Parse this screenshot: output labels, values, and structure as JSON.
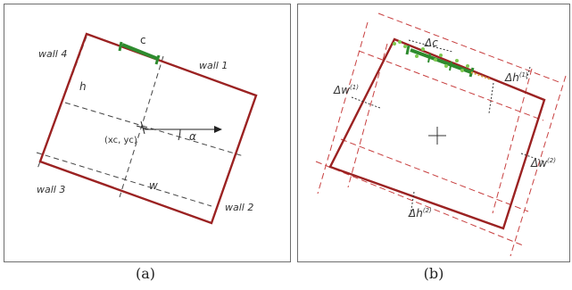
{
  "colors": {
    "wall": "#9b2222",
    "dashed_red": "#c84040",
    "dashed_black": "#444444",
    "door": "#2e8b2e",
    "door_points": "#7ec850"
  },
  "panel_a": {
    "caption": "(a)",
    "labels": {
      "wall1": "wall 1",
      "wall2": "wall 2",
      "wall3": "wall 3",
      "wall4": "wall 4",
      "c": "c",
      "h": "h",
      "w": "w",
      "center": "(xc, yc)",
      "alpha": "α"
    }
  },
  "panel_b": {
    "caption": "(b)",
    "labels": {
      "dc": "Δc",
      "dh1_base": "Δh",
      "dh1_sup": "(1)",
      "dw1_base": "Δw",
      "dw1_sup": "(1)",
      "dw2_base": "Δw",
      "dw2_sup": "(2)",
      "dh2_base": "Δh",
      "dh2_sup": "(2)"
    }
  }
}
